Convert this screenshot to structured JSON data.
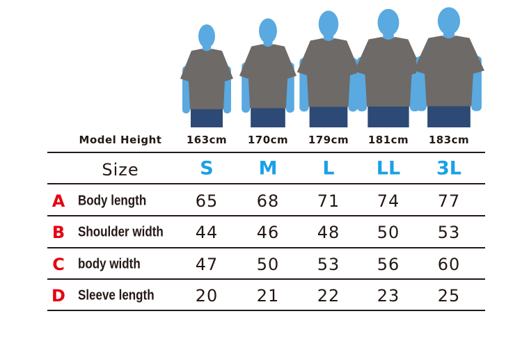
{
  "colors": {
    "size_accent": "#1aa0e6",
    "row_letter": "#e60012",
    "silhouette": "#5aa9e0",
    "shirt": "#6e6a67",
    "jeans": "#2c4a75",
    "text": "#231815"
  },
  "model_height": {
    "label": "Model Height",
    "values": [
      "163cm",
      "170cm",
      "179cm",
      "181cm",
      "183cm"
    ],
    "heights_cm": [
      163,
      170,
      179,
      181,
      183
    ]
  },
  "size": {
    "label": "Size",
    "values": [
      "S",
      "M",
      "L",
      "LL",
      "3L"
    ]
  },
  "rows": [
    {
      "letter": "A",
      "label": "Body length",
      "values": [
        "65",
        "68",
        "71",
        "74",
        "77"
      ]
    },
    {
      "letter": "B",
      "label": "Shoulder width",
      "values": [
        "44",
        "46",
        "48",
        "50",
        "53"
      ]
    },
    {
      "letter": "C",
      "label": "body width",
      "values": [
        "47",
        "50",
        "53",
        "56",
        "60"
      ]
    },
    {
      "letter": "D",
      "label": "Sleeve length",
      "values": [
        "20",
        "21",
        "22",
        "23",
        "25"
      ]
    }
  ]
}
